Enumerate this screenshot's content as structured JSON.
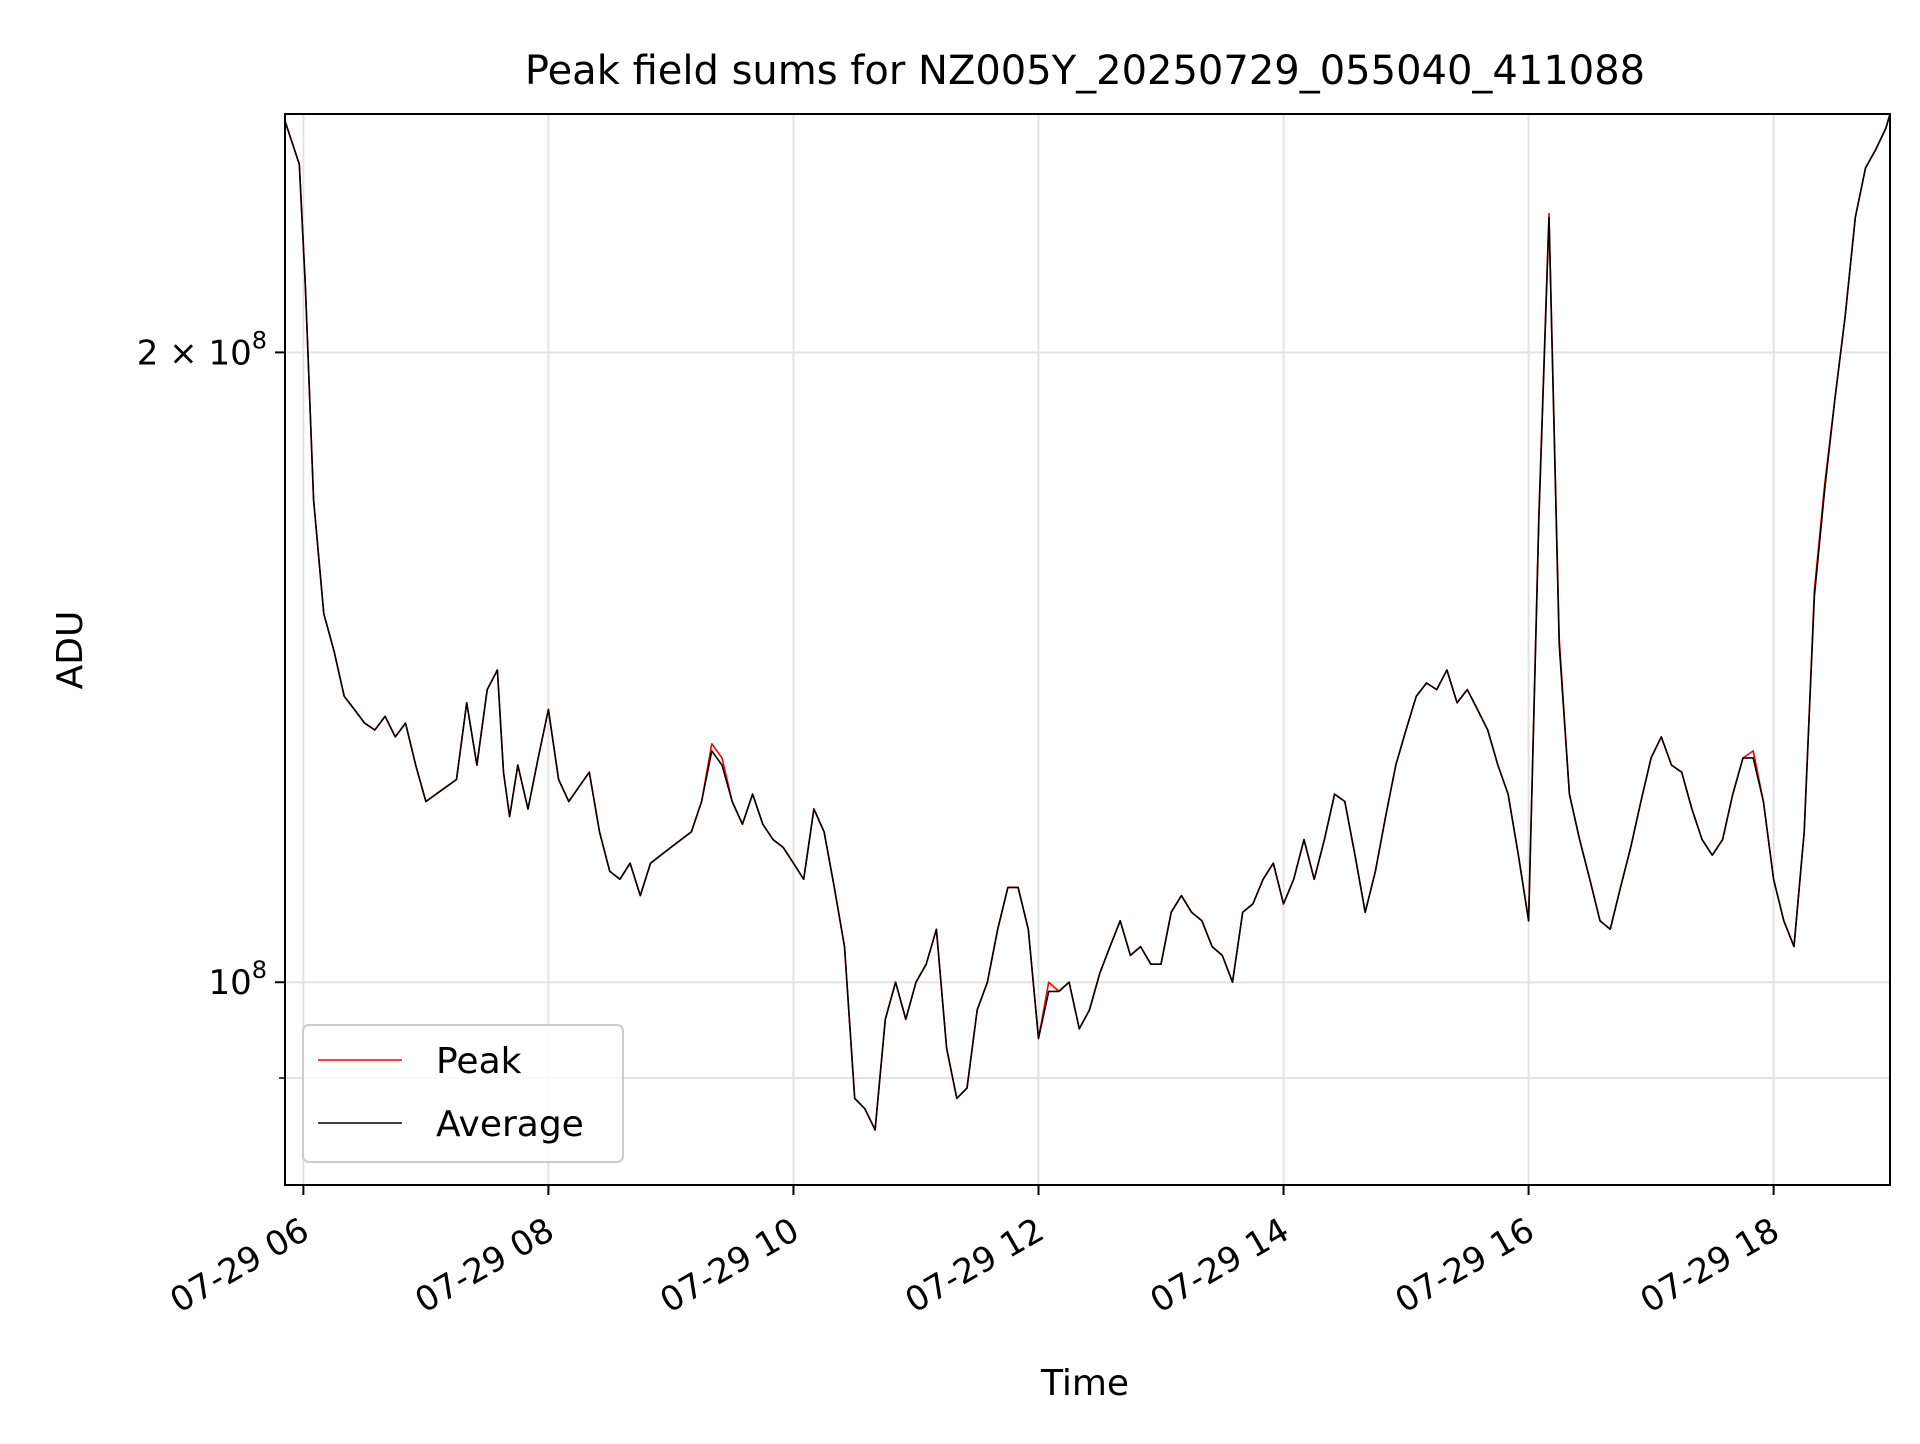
{
  "chart_data": {
    "type": "line",
    "title": "Peak field sums for NZ005Y_20250729_055040_411088",
    "xlabel": "Time",
    "ylabel": "ADU",
    "y_scale": "log",
    "ylim": [
      80000000,
      260000000
    ],
    "xlim": [
      "2025-07-29 05:51",
      "2025-07-29 18:57"
    ],
    "grid": true,
    "legend_position": "lower-left",
    "x_tick_labels": [
      "07-29 06",
      "07-29 08",
      "07-29 10",
      "07-29 12",
      "07-29 14",
      "07-29 16",
      "07-29 18"
    ],
    "x_ticks": [
      "2025-07-29 06:00",
      "2025-07-29 08:00",
      "2025-07-29 10:00",
      "2025-07-29 12:00",
      "2025-07-29 14:00",
      "2025-07-29 16:00",
      "2025-07-29 18:00"
    ],
    "y_ticks": [
      {
        "value": 200000000,
        "label_base": "2 × 10",
        "label_exp": "8"
      },
      {
        "value": 100000000,
        "label_base": "10",
        "label_exp": "8"
      }
    ],
    "y_minor_ticks": [
      90000000
    ],
    "series": [
      {
        "name": "Peak",
        "color": "#ff0000"
      },
      {
        "name": "Average",
        "color": "#000000"
      }
    ],
    "x": [
      "2025-07-29 05:51",
      "2025-07-29 05:58",
      "2025-07-29 06:01",
      "2025-07-29 06:05",
      "2025-07-29 06:10",
      "2025-07-29 06:15",
      "2025-07-29 06:20",
      "2025-07-29 06:25",
      "2025-07-29 06:30",
      "2025-07-29 06:35",
      "2025-07-29 06:40",
      "2025-07-29 06:45",
      "2025-07-29 06:50",
      "2025-07-29 06:55",
      "2025-07-29 07:00",
      "2025-07-29 07:05",
      "2025-07-29 07:10",
      "2025-07-29 07:15",
      "2025-07-29 07:20",
      "2025-07-29 07:25",
      "2025-07-29 07:30",
      "2025-07-29 07:35",
      "2025-07-29 07:38",
      "2025-07-29 07:41",
      "2025-07-29 07:45",
      "2025-07-29 07:50",
      "2025-07-29 07:55",
      "2025-07-29 08:00",
      "2025-07-29 08:05",
      "2025-07-29 08:10",
      "2025-07-29 08:15",
      "2025-07-29 08:20",
      "2025-07-29 08:25",
      "2025-07-29 08:30",
      "2025-07-29 08:35",
      "2025-07-29 08:40",
      "2025-07-29 08:45",
      "2025-07-29 08:50",
      "2025-07-29 08:55",
      "2025-07-29 09:00",
      "2025-07-29 09:05",
      "2025-07-29 09:10",
      "2025-07-29 09:15",
      "2025-07-29 09:20",
      "2025-07-29 09:25",
      "2025-07-29 09:30",
      "2025-07-29 09:35",
      "2025-07-29 09:40",
      "2025-07-29 09:45",
      "2025-07-29 09:50",
      "2025-07-29 09:55",
      "2025-07-29 10:00",
      "2025-07-29 10:05",
      "2025-07-29 10:10",
      "2025-07-29 10:15",
      "2025-07-29 10:20",
      "2025-07-29 10:25",
      "2025-07-29 10:30",
      "2025-07-29 10:35",
      "2025-07-29 10:40",
      "2025-07-29 10:45",
      "2025-07-29 10:50",
      "2025-07-29 10:55",
      "2025-07-29 11:00",
      "2025-07-29 11:05",
      "2025-07-29 11:10",
      "2025-07-29 11:15",
      "2025-07-29 11:20",
      "2025-07-29 11:25",
      "2025-07-29 11:30",
      "2025-07-29 11:35",
      "2025-07-29 11:40",
      "2025-07-29 11:45",
      "2025-07-29 11:50",
      "2025-07-29 11:55",
      "2025-07-29 12:00",
      "2025-07-29 12:05",
      "2025-07-29 12:10",
      "2025-07-29 12:15",
      "2025-07-29 12:20",
      "2025-07-29 12:25",
      "2025-07-29 12:30",
      "2025-07-29 12:35",
      "2025-07-29 12:40",
      "2025-07-29 12:45",
      "2025-07-29 12:50",
      "2025-07-29 12:55",
      "2025-07-29 13:00",
      "2025-07-29 13:05",
      "2025-07-29 13:10",
      "2025-07-29 13:15",
      "2025-07-29 13:20",
      "2025-07-29 13:25",
      "2025-07-29 13:30",
      "2025-07-29 13:35",
      "2025-07-29 13:40",
      "2025-07-29 13:45",
      "2025-07-29 13:50",
      "2025-07-29 13:55",
      "2025-07-29 14:00",
      "2025-07-29 14:05",
      "2025-07-29 14:10",
      "2025-07-29 14:15",
      "2025-07-29 14:20",
      "2025-07-29 14:25",
      "2025-07-29 14:30",
      "2025-07-29 14:35",
      "2025-07-29 14:40",
      "2025-07-29 14:45",
      "2025-07-29 14:50",
      "2025-07-29 14:55",
      "2025-07-29 15:00",
      "2025-07-29 15:05",
      "2025-07-29 15:10",
      "2025-07-29 15:15",
      "2025-07-29 15:20",
      "2025-07-29 15:25",
      "2025-07-29 15:30",
      "2025-07-29 15:35",
      "2025-07-29 15:40",
      "2025-07-29 15:45",
      "2025-07-29 15:50",
      "2025-07-29 15:55",
      "2025-07-29 16:00",
      "2025-07-29 16:05",
      "2025-07-29 16:10",
      "2025-07-29 16:15",
      "2025-07-29 16:20",
      "2025-07-29 16:25",
      "2025-07-29 16:30",
      "2025-07-29 16:35",
      "2025-07-29 16:40",
      "2025-07-29 16:45",
      "2025-07-29 16:50",
      "2025-07-29 16:55",
      "2025-07-29 17:00",
      "2025-07-29 17:05",
      "2025-07-29 17:10",
      "2025-07-29 17:15",
      "2025-07-29 17:20",
      "2025-07-29 17:25",
      "2025-07-29 17:30",
      "2025-07-29 17:35",
      "2025-07-29 17:40",
      "2025-07-29 17:45",
      "2025-07-29 17:50",
      "2025-07-29 17:55",
      "2025-07-29 18:00",
      "2025-07-29 18:05",
      "2025-07-29 18:10",
      "2025-07-29 18:15",
      "2025-07-29 18:20",
      "2025-07-29 18:25",
      "2025-07-29 18:30",
      "2025-07-29 18:35",
      "2025-07-29 18:40",
      "2025-07-29 18:45",
      "2025-07-29 18:50",
      "2025-07-29 18:55",
      "2025-07-29 18:57"
    ],
    "peak": [
      258000000,
      246000000,
      215000000,
      170000000,
      150000000,
      144000000,
      137000000,
      135000000,
      133000000,
      132000000,
      134000000,
      131000000,
      133000000,
      127000000,
      122000000,
      123000000,
      124000000,
      125000000,
      136000000,
      127000000,
      138000000,
      141000000,
      126000000,
      120000000,
      127000000,
      121000000,
      128000000,
      135000000,
      125000000,
      122000000,
      124000000,
      126000000,
      118000000,
      113000000,
      112000000,
      114000000,
      110000000,
      114000000,
      115000000,
      116000000,
      117000000,
      118000000,
      122000000,
      130000000,
      128000000,
      122000000,
      119000000,
      123000000,
      119000000,
      117000000,
      116000000,
      114000000,
      112000000,
      121000000,
      118000000,
      111000000,
      104000000,
      88000000,
      87000000,
      85000000,
      96000000,
      100000000,
      96000000,
      100000000,
      102000000,
      106000000,
      93000000,
      88000000,
      89000000,
      97000000,
      100000000,
      106000000,
      111000000,
      111000000,
      106000000,
      94000000,
      100000000,
      99000000,
      100000000,
      95000000,
      97000000,
      101000000,
      104000000,
      107000000,
      103000000,
      104000000,
      102000000,
      102000000,
      108000000,
      110000000,
      108000000,
      107000000,
      104000000,
      103000000,
      100000000,
      108000000,
      109000000,
      112000000,
      114000000,
      109000000,
      112000000,
      117000000,
      112000000,
      117000000,
      123000000,
      122000000,
      115000000,
      108000000,
      113000000,
      120000000,
      127000000,
      132000000,
      137000000,
      139000000,
      138000000,
      141000000,
      136000000,
      138000000,
      135000000,
      132000000,
      127000000,
      123000000,
      115000000,
      107000000,
      167000000,
      233000000,
      146000000,
      123000000,
      117000000,
      112000000,
      107000000,
      106000000,
      111000000,
      116000000,
      122000000,
      128000000,
      131000000,
      127000000,
      126000000,
      121000000,
      117000000,
      115000000,
      117000000,
      123000000,
      128000000,
      129000000,
      122000000,
      112000000,
      107000000,
      104000000,
      118000000,
      154000000,
      173000000,
      190000000,
      208000000,
      232000000,
      245000000,
      250000000,
      256000000,
      260000000
    ],
    "average": [
      258000000,
      246000000,
      215000000,
      170000000,
      150000000,
      144000000,
      137000000,
      135000000,
      133000000,
      132000000,
      134000000,
      131000000,
      133000000,
      127000000,
      122000000,
      123000000,
      124000000,
      125000000,
      136000000,
      127000000,
      138000000,
      141000000,
      126000000,
      120000000,
      127000000,
      121000000,
      128000000,
      135000000,
      125000000,
      122000000,
      124000000,
      126000000,
      118000000,
      113000000,
      112000000,
      114000000,
      110000000,
      114000000,
      115000000,
      116000000,
      117000000,
      118000000,
      122000000,
      129000000,
      127000000,
      122000000,
      119000000,
      123000000,
      119000000,
      117000000,
      116000000,
      114000000,
      112000000,
      121000000,
      118000000,
      111000000,
      104000000,
      88000000,
      87000000,
      85000000,
      96000000,
      100000000,
      96000000,
      100000000,
      102000000,
      106000000,
      93000000,
      88000000,
      89000000,
      97000000,
      100000000,
      106000000,
      111000000,
      111000000,
      106000000,
      94000000,
      99000000,
      99000000,
      100000000,
      95000000,
      97000000,
      101000000,
      104000000,
      107000000,
      103000000,
      104000000,
      102000000,
      102000000,
      108000000,
      110000000,
      108000000,
      107000000,
      104000000,
      103000000,
      100000000,
      108000000,
      109000000,
      112000000,
      114000000,
      109000000,
      112000000,
      117000000,
      112000000,
      117000000,
      123000000,
      122000000,
      115000000,
      108000000,
      113000000,
      120000000,
      127000000,
      132000000,
      137000000,
      139000000,
      138000000,
      141000000,
      136000000,
      138000000,
      135000000,
      132000000,
      127000000,
      123000000,
      115000000,
      107000000,
      166000000,
      232000000,
      145000000,
      123000000,
      117000000,
      112000000,
      107000000,
      106000000,
      111000000,
      116000000,
      122000000,
      128000000,
      131000000,
      127000000,
      126000000,
      121000000,
      117000000,
      115000000,
      117000000,
      123000000,
      128000000,
      128000000,
      122000000,
      112000000,
      107000000,
      104000000,
      118000000,
      153000000,
      172000000,
      190000000,
      208000000,
      232000000,
      245000000,
      250000000,
      256000000,
      260000000
    ]
  }
}
